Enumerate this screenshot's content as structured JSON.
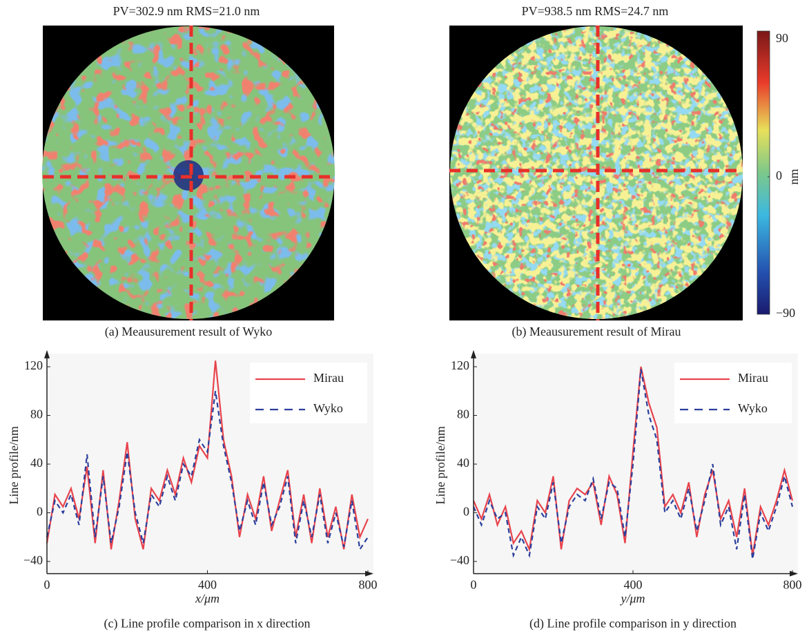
{
  "chart_data": [
    {
      "type": "heatmap_image",
      "title": "PV=302.9 nm RMS=21.0 nm",
      "caption": "(a) Meausurement result of Wyko"
    },
    {
      "type": "heatmap_image",
      "title": "PV=938.5 nm RMS=24.7 nm",
      "caption": "(b) Meausurement result of Mirau",
      "colorbar": {
        "label": "nm",
        "lim": [
          -90,
          90
        ],
        "ticks": [
          {
            "value": -90,
            "label": "−90"
          },
          0,
          90
        ]
      }
    },
    {
      "type": "line",
      "caption": "(c) Line profile comparison in x direction",
      "xlabel": "x/μm",
      "ylabel": "Line profile/nm",
      "xlim": [
        0,
        800
      ],
      "ylim": [
        -50,
        128
      ],
      "xticks": [
        0,
        400,
        800
      ],
      "yticks": [
        {
          "value": -40,
          "label": "−40"
        },
        0,
        40,
        80,
        120
      ],
      "x": [
        0,
        20,
        40,
        60,
        80,
        100,
        120,
        140,
        160,
        180,
        200,
        220,
        240,
        260,
        280,
        300,
        320,
        340,
        360,
        380,
        400,
        420,
        440,
        460,
        480,
        500,
        520,
        540,
        560,
        580,
        600,
        620,
        640,
        660,
        680,
        700,
        720,
        740,
        760,
        780,
        800
      ],
      "series": [
        {
          "name": "Mirau",
          "color": "#e8434c",
          "line_style": "solid",
          "values": [
            -25,
            15,
            5,
            20,
            -5,
            38,
            -25,
            35,
            -30,
            10,
            58,
            -5,
            -30,
            20,
            10,
            35,
            15,
            45,
            25,
            55,
            45,
            125,
            60,
            30,
            -20,
            15,
            -5,
            30,
            -15,
            10,
            35,
            -20,
            15,
            -25,
            20,
            -20,
            5,
            -30,
            15,
            -20,
            -5
          ]
        },
        {
          "name": "Wyko",
          "color": "#2b3f9c",
          "line_style": "dashed",
          "values": [
            -20,
            10,
            0,
            15,
            -10,
            48,
            -20,
            30,
            -25,
            5,
            50,
            0,
            -25,
            15,
            5,
            30,
            10,
            40,
            30,
            60,
            50,
            100,
            55,
            25,
            -15,
            10,
            -10,
            25,
            -10,
            5,
            30,
            -25,
            10,
            -20,
            15,
            -25,
            0,
            -28,
            10,
            -30,
            -20
          ]
        }
      ]
    },
    {
      "type": "line",
      "caption": "(d) Line profile comparison in y direction",
      "xlabel": "y/μm",
      "ylabel": "Line profile/nm",
      "xlim": [
        0,
        800
      ],
      "ylim": [
        -50,
        128
      ],
      "xticks": [
        0,
        400,
        800
      ],
      "yticks": [
        {
          "value": -40,
          "label": "−40"
        },
        0,
        40,
        80,
        120
      ],
      "x": [
        0,
        20,
        40,
        60,
        80,
        100,
        120,
        140,
        160,
        180,
        200,
        220,
        240,
        260,
        280,
        300,
        320,
        340,
        360,
        380,
        400,
        420,
        440,
        460,
        480,
        500,
        520,
        540,
        560,
        580,
        600,
        620,
        640,
        660,
        680,
        700,
        720,
        740,
        760,
        780,
        800
      ],
      "series": [
        {
          "name": "Mirau",
          "color": "#e8434c",
          "line_style": "solid",
          "values": [
            10,
            -5,
            15,
            -10,
            5,
            -25,
            -15,
            -30,
            10,
            0,
            30,
            -30,
            10,
            20,
            15,
            25,
            -10,
            30,
            15,
            -25,
            50,
            120,
            90,
            70,
            5,
            15,
            0,
            25,
            -20,
            15,
            35,
            -5,
            10,
            -20,
            20,
            -35,
            5,
            -10,
            10,
            35,
            10
          ]
        },
        {
          "name": "Wyko",
          "color": "#2b3f9c",
          "line_style": "dashed",
          "values": [
            5,
            -10,
            10,
            -5,
            0,
            -35,
            -20,
            -35,
            5,
            -5,
            25,
            -25,
            5,
            15,
            10,
            28,
            -5,
            25,
            20,
            -20,
            40,
            118,
            80,
            60,
            0,
            10,
            -5,
            20,
            -15,
            10,
            40,
            -10,
            5,
            -30,
            15,
            -38,
            0,
            -15,
            5,
            30,
            5
          ]
        }
      ]
    }
  ]
}
